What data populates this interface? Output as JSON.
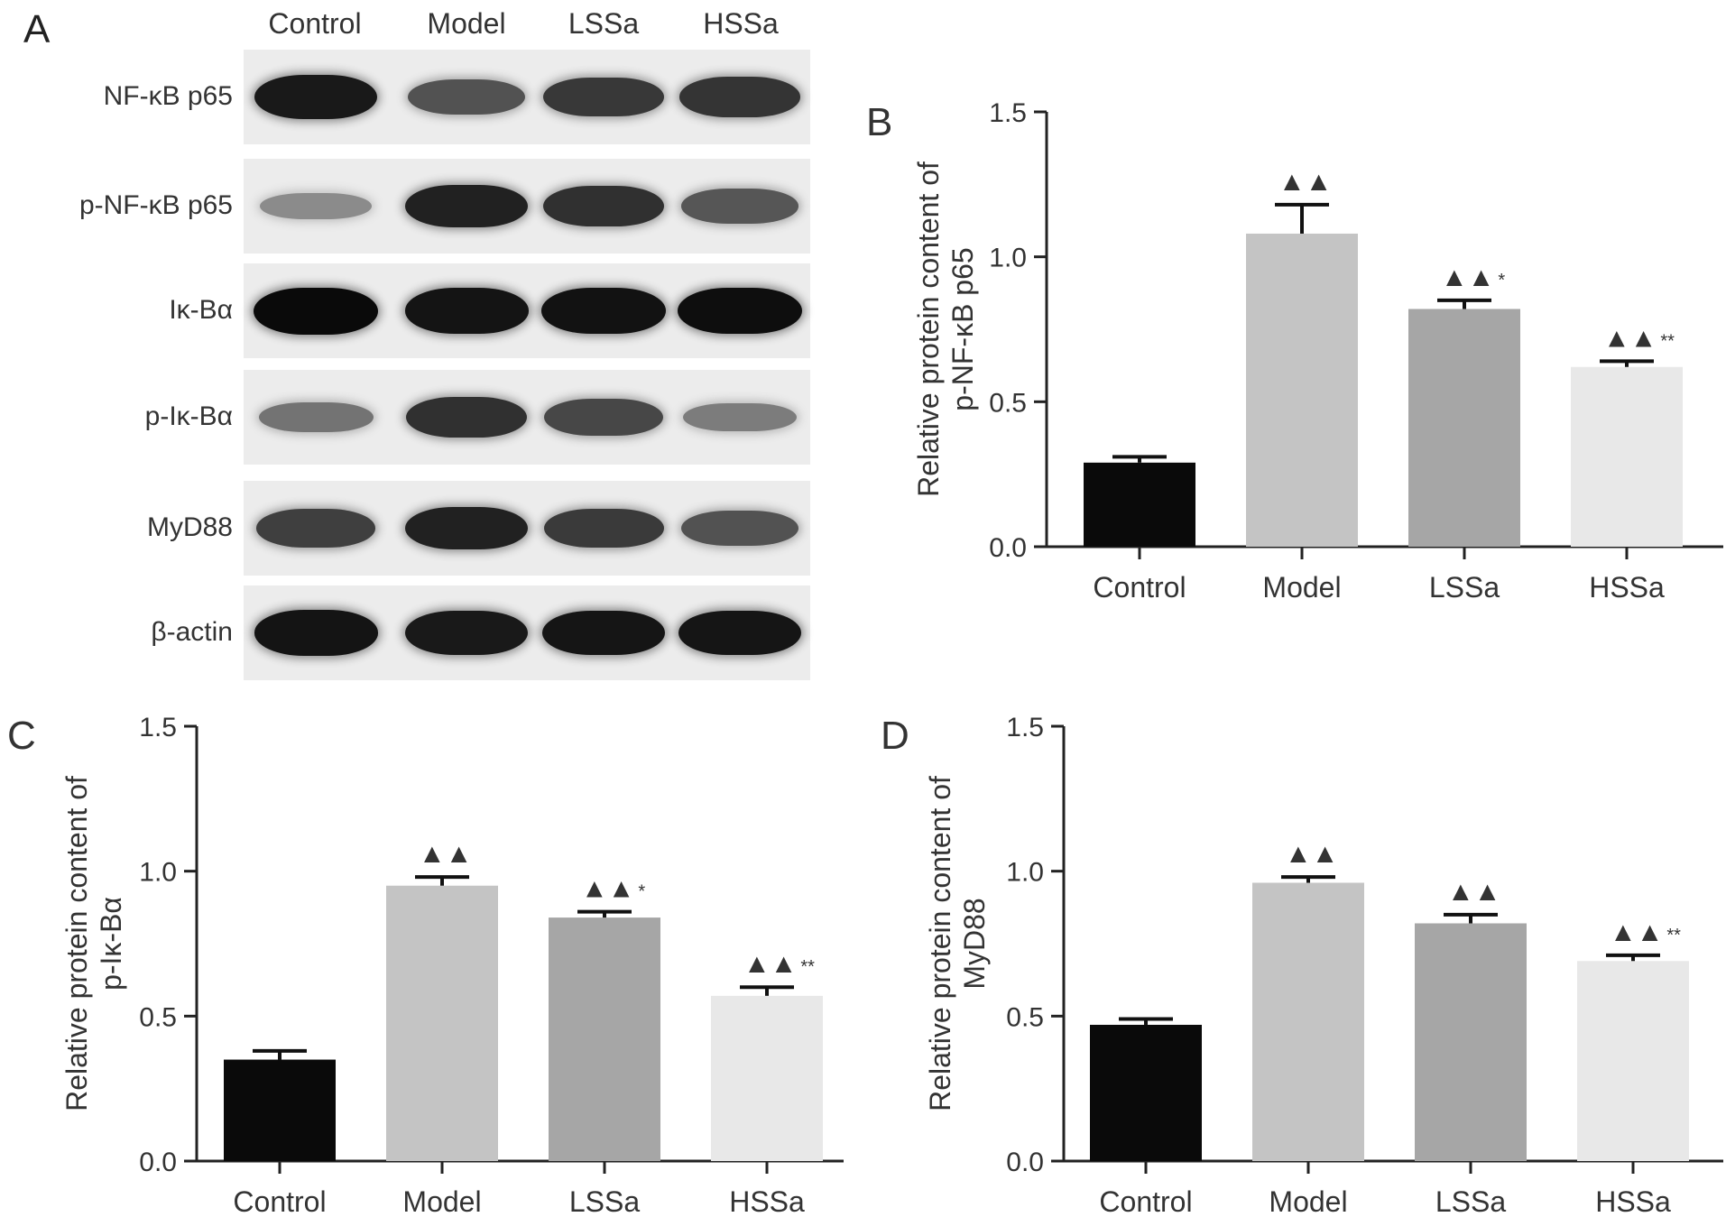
{
  "panel_a": {
    "letter": "A",
    "lanes": [
      "Control",
      "Model",
      "LSSa",
      "HSSa"
    ],
    "rows": [
      {
        "label": "NF-κB p65",
        "intensity": [
          0.92,
          0.62,
          0.76,
          0.78
        ]
      },
      {
        "label": "p-NF-κB p65",
        "intensity": [
          0.32,
          0.88,
          0.8,
          0.6
        ]
      },
      {
        "label": "Iκ-Bα",
        "intensity": [
          1.0,
          0.95,
          0.96,
          0.98
        ]
      },
      {
        "label": "p-Iκ-Bα",
        "intensity": [
          0.45,
          0.8,
          0.68,
          0.4
        ]
      },
      {
        "label": "MyD88",
        "intensity": [
          0.72,
          0.88,
          0.75,
          0.62
        ]
      },
      {
        "label": "β-actin",
        "intensity": [
          0.95,
          0.92,
          0.94,
          0.94
        ]
      }
    ]
  },
  "chart_data": [
    {
      "panel": "B",
      "type": "bar",
      "categories": [
        "Control",
        "Model",
        "LSSa",
        "HSSa"
      ],
      "values": [
        0.29,
        1.08,
        0.82,
        0.62
      ],
      "errors": [
        0.02,
        0.1,
        0.03,
        0.02
      ],
      "annotations": [
        "",
        "▲▲",
        "▲▲*",
        "▲▲**"
      ],
      "ylabel": [
        "Relative protein content of",
        "p-NF-κB p65"
      ],
      "ylim": [
        0,
        1.5
      ],
      "yticks": [
        "0.0",
        "0.5",
        "1.0",
        "1.5"
      ],
      "colors": [
        "#0a0a0a",
        "#c4c4c4",
        "#a6a6a6",
        "#e8e8e8"
      ]
    },
    {
      "panel": "C",
      "type": "bar",
      "categories": [
        "Control",
        "Model",
        "LSSa",
        "HSSa"
      ],
      "values": [
        0.35,
        0.95,
        0.84,
        0.57
      ],
      "errors": [
        0.03,
        0.03,
        0.02,
        0.03
      ],
      "annotations": [
        "",
        "▲▲",
        "▲▲*",
        "▲▲**"
      ],
      "ylabel": [
        "Relative protein content of",
        "p-Iκ-Bα"
      ],
      "ylim": [
        0,
        1.5
      ],
      "yticks": [
        "0.0",
        "0.5",
        "1.0",
        "1.5"
      ],
      "colors": [
        "#0a0a0a",
        "#c4c4c4",
        "#a6a6a6",
        "#e8e8e8"
      ]
    },
    {
      "panel": "D",
      "type": "bar",
      "categories": [
        "Control",
        "Model",
        "LSSa",
        "HSSa"
      ],
      "values": [
        0.47,
        0.96,
        0.82,
        0.69
      ],
      "errors": [
        0.02,
        0.02,
        0.03,
        0.02
      ],
      "annotations": [
        "",
        "▲▲",
        "▲▲",
        "▲▲**"
      ],
      "ylabel": [
        "Relative protein content of",
        "MyD88"
      ],
      "ylim": [
        0,
        1.5
      ],
      "yticks": [
        "0.0",
        "0.5",
        "1.0",
        "1.5"
      ],
      "colors": [
        "#0a0a0a",
        "#c4c4c4",
        "#a6a6a6",
        "#e8e8e8"
      ]
    }
  ]
}
